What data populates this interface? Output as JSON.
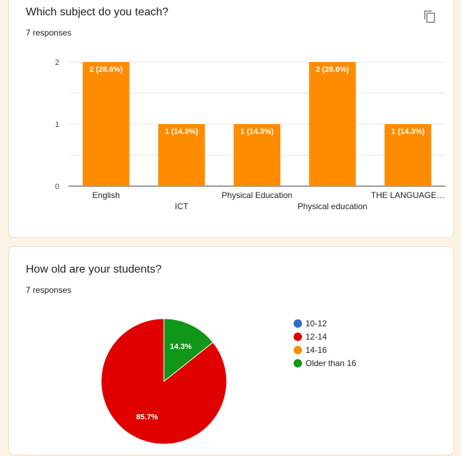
{
  "card1": {
    "title": "Which subject do you teach?",
    "responses": "7 responses",
    "icon": "copy-icon",
    "chart_data": {
      "type": "bar",
      "categories": [
        "English",
        "ICT",
        "Physical Education",
        "Physical education",
        "THE LANGUAGE…"
      ],
      "values": [
        2,
        1,
        1,
        2,
        1
      ],
      "data_labels": [
        "2 (28.6%)",
        "1 (14.3%)",
        "1 (14.3%)",
        "2 (28.6%)",
        "1 (14.3%)"
      ],
      "ylim": [
        0,
        2
      ],
      "yticks": [
        "0",
        "1",
        "2"
      ],
      "grid": true,
      "color": "#ff8c00"
    }
  },
  "card2": {
    "title": "How old are your students?",
    "responses": "7 responses",
    "chart_data": {
      "type": "pie",
      "labels": [
        "10-12",
        "12-14",
        "14-16",
        "Older than 16"
      ],
      "values": [
        0,
        85.7,
        0,
        14.3
      ],
      "slice_labels": [
        "",
        "85.7%",
        "",
        "14.3%"
      ],
      "colors": [
        "#3366cc",
        "#e00000",
        "#ff8c00",
        "#109618"
      ],
      "legend_position": "right"
    }
  }
}
